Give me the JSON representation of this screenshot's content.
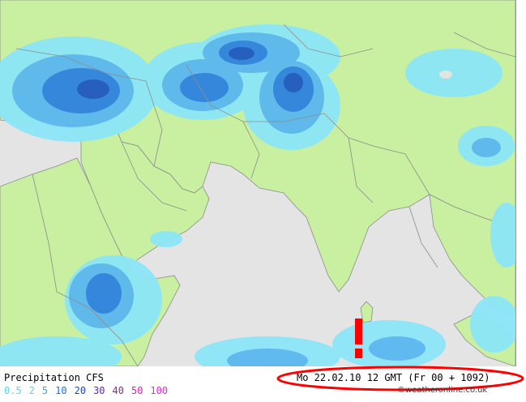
{
  "map": {
    "colors": {
      "sea": "#e4e4e4",
      "land": "#c8f0a0",
      "border": "#8c8c8c",
      "marker": "#ff0000",
      "highlight": "#ff0000"
    }
  },
  "legend": {
    "title": "Precipitation CFS",
    "values": [
      {
        "label": "0.5",
        "color": "#5ad2f0"
      },
      {
        "label": "2",
        "color": "#5ad2f0"
      },
      {
        "label": "5",
        "color": "#3aa0f0"
      },
      {
        "label": "10",
        "color": "#1e6ee6"
      },
      {
        "label": "20",
        "color": "#1e46c8"
      },
      {
        "label": "30",
        "color": "#5a28b4"
      },
      {
        "label": "40",
        "color": "#a01ea0"
      },
      {
        "label": "50",
        "color": "#d21eb4"
      },
      {
        "label": "100",
        "color": "#f01ee6"
      }
    ]
  },
  "timestamp": "Mo 22.02.10 12 GMT (Fr 00 + 1092)",
  "credit": "©weatheronline.co.uk"
}
